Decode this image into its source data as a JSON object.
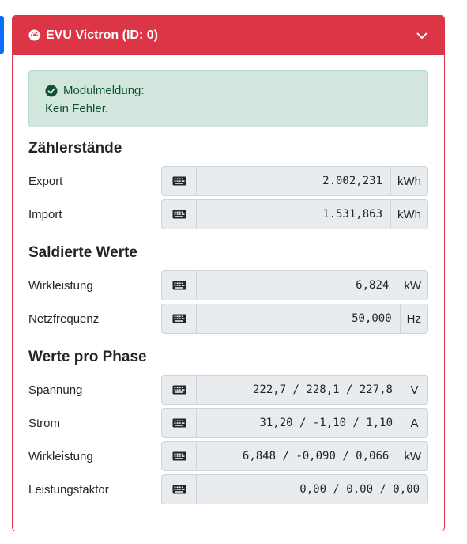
{
  "header": {
    "title": "EVU Victron (ID: 0)"
  },
  "alert": {
    "heading": "Modulmeldung:",
    "message": "Kein Fehler."
  },
  "sections": {
    "zaehler": {
      "title": "Zählerstände",
      "rows": [
        {
          "label": "Export",
          "value": "2.002,231",
          "unit": "kWh"
        },
        {
          "label": "Import",
          "value": "1.531,863",
          "unit": "kWh"
        }
      ]
    },
    "saldiert": {
      "title": "Saldierte Werte",
      "rows": [
        {
          "label": "Wirkleistung",
          "value": "6,824",
          "unit": "kW"
        },
        {
          "label": "Netzfrequenz",
          "value": "50,000",
          "unit": "Hz"
        }
      ]
    },
    "phase": {
      "title": "Werte pro Phase",
      "rows": [
        {
          "label": "Spannung",
          "value": "222,7 / 228,1 / 227,8",
          "unit": "V"
        },
        {
          "label": "Strom",
          "value": "31,20 / -1,10 / 1,10",
          "unit": "A"
        },
        {
          "label": "Wirkleistung",
          "value": "6,848 / -0,090 / 0,066",
          "unit": "kW"
        },
        {
          "label": "Leistungsfaktor",
          "value": "0,00 / 0,00 / 0,00",
          "unit": ""
        }
      ]
    }
  },
  "colors": {
    "header": "#dc3545",
    "alert_bg": "#d1e7dd",
    "alert_text": "#0f5132",
    "accent": "#0d6efd"
  },
  "icons": {
    "header": "gauge-icon",
    "collapse": "chevron-down-icon",
    "alert": "check-circle-icon",
    "input": "keyboard-icon"
  }
}
